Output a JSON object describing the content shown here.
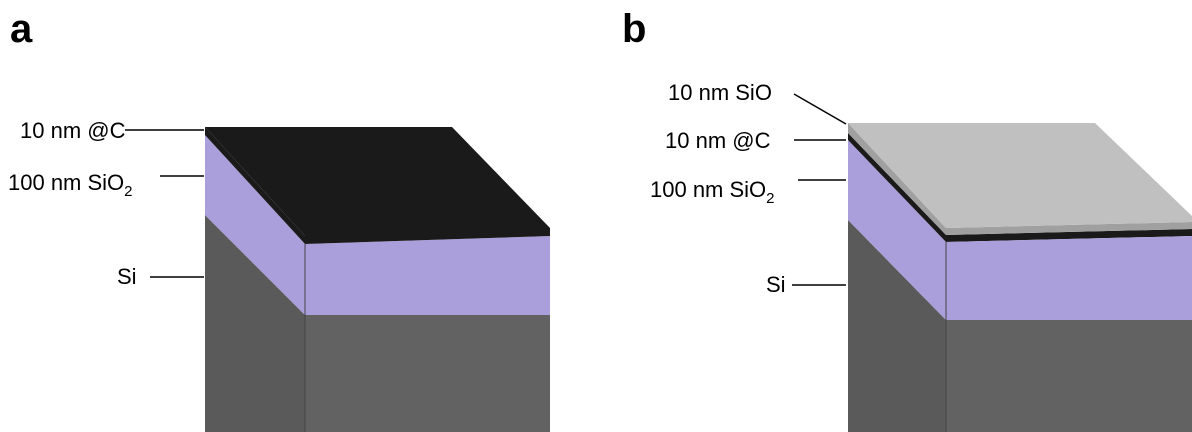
{
  "panels": [
    {
      "label": "a",
      "layers": [
        {
          "text": "10 nm @C"
        },
        {
          "text": "100 nm SiO",
          "subscript": "2"
        },
        {
          "text": "Si"
        }
      ]
    },
    {
      "label": "b",
      "layers": [
        {
          "text": "10 nm SiO"
        },
        {
          "text": "10 nm @C"
        },
        {
          "text": "100 nm SiO",
          "subscript": "2"
        },
        {
          "text": "Si"
        }
      ]
    }
  ]
}
